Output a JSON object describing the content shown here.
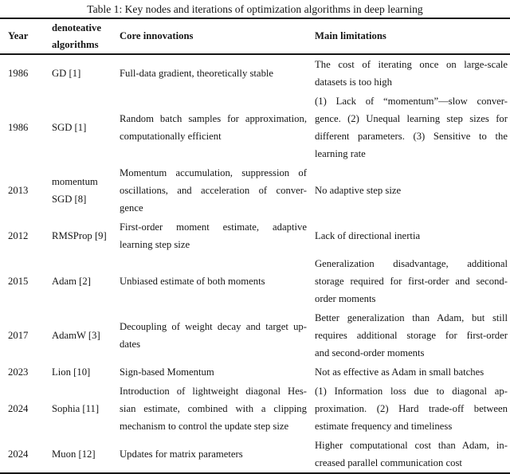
{
  "colors": {
    "background": "#ffffff",
    "text": "#161616",
    "rule": "#161616"
  },
  "caption": "Table 1: Key nodes and iterations of optimization algorithms in deep learning",
  "table": {
    "headers": {
      "year": "Year",
      "algorithms": [
        "denoteative",
        "algorithms"
      ],
      "core": "Core innovations",
      "limitations": "Main limitations"
    },
    "rows": [
      {
        "year": "1986",
        "algorithm": [
          "GD [1]"
        ],
        "core": [
          "Full-data gradient, theoretically stable"
        ],
        "limitations": [
          "The cost of iterating once on large-scale",
          "datasets is too high"
        ]
      },
      {
        "year": "1986",
        "algorithm": [
          "SGD [1]"
        ],
        "core": [
          "Random batch samples for approximation,",
          "computationally efficient"
        ],
        "limitations": [
          "(1) Lack of “momentum”—slow conver-",
          "gence. (2) Unequal learning step sizes for",
          "different parameters. (3) Sensitive to the",
          "learning rate"
        ]
      },
      {
        "year": "2013",
        "algorithm": [
          "momentum",
          "SGD [8]"
        ],
        "core": [
          "Momentum accumulation, suppression of",
          "oscillations, and acceleration of conver-",
          "gence"
        ],
        "limitations": [
          "No adaptive step size"
        ]
      },
      {
        "year": "2012",
        "algorithm": [
          "RMSProp [9]"
        ],
        "core": [
          "First-order moment estimate, adaptive",
          "learning step size"
        ],
        "limitations": [
          "Lack of directional inertia"
        ]
      },
      {
        "year": "2015",
        "algorithm": [
          "Adam [2]"
        ],
        "core": [
          "Unbiased estimate of both moments"
        ],
        "limitations": [
          "Generalization disadvantage, additional",
          "storage required for first-order and second-",
          "order moments"
        ]
      },
      {
        "year": "2017",
        "algorithm": [
          "AdamW [3]"
        ],
        "core": [
          "Decoupling of weight decay and target up-",
          "dates"
        ],
        "limitations": [
          "Better generalization than Adam, but still",
          "requires additional storage for first-order",
          "and second-order moments"
        ]
      },
      {
        "year": "2023",
        "algorithm": [
          "Lion [10]"
        ],
        "core": [
          "Sign-based Momentum"
        ],
        "limitations": [
          "Not as effective as Adam in small batches"
        ]
      },
      {
        "year": "2024",
        "algorithm": [
          "Sophia [11]"
        ],
        "core": [
          "Introduction of lightweight diagonal Hes-",
          "sian estimate, combined with a clipping",
          "mechanism to control the update step size"
        ],
        "limitations": [
          "(1) Information loss due to diagonal ap-",
          "proximation. (2) Hard trade-off between",
          "estimate frequency and timeliness"
        ]
      },
      {
        "year": "2024",
        "algorithm": [
          "Muon [12]"
        ],
        "core": [
          "Updates for matrix parameters"
        ],
        "limitations": [
          "Higher computational cost than Adam, in-",
          "creased parallel communication cost"
        ]
      }
    ]
  }
}
